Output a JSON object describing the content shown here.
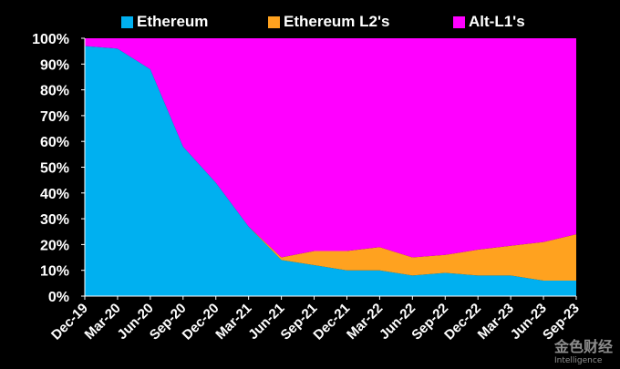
{
  "chart_data": {
    "type": "area",
    "stacked": true,
    "normalized_percent": true,
    "x": [
      "Dec-19",
      "Mar-20",
      "Jun-20",
      "Sep-20",
      "Dec-20",
      "Mar-21",
      "Jun-21",
      "Sep-21",
      "Dec-21",
      "Mar-22",
      "Jun-22",
      "Sep-22",
      "Dec-22",
      "Mar-23",
      "Jun-23",
      "Sep-23"
    ],
    "series": [
      {
        "name": "Ethereum",
        "color": "#00b0f0",
        "values": [
          97,
          96,
          88,
          58,
          44,
          27,
          14,
          12,
          10,
          10,
          8,
          9,
          8,
          8,
          6,
          6
        ]
      },
      {
        "name": "Ethereum L2's",
        "color": "#ffa21f",
        "values": [
          0,
          0,
          0,
          0,
          0,
          0,
          1,
          5.5,
          7.5,
          9,
          7,
          7,
          10,
          11.5,
          15,
          18
        ]
      },
      {
        "name": "Alt-L1's",
        "color": "#ff00ff",
        "values": [
          3,
          4,
          12,
          42,
          56,
          73,
          85,
          82.5,
          82.5,
          81,
          85,
          84,
          82,
          80.5,
          79,
          76
        ]
      }
    ],
    "y_ticks": [
      "0%",
      "10%",
      "20%",
      "30%",
      "40%",
      "50%",
      "60%",
      "70%",
      "80%",
      "90%",
      "100%"
    ],
    "ylim": [
      0,
      100
    ],
    "grid": false,
    "legend_position": "top",
    "title": "",
    "xlabel": "",
    "ylabel": ""
  },
  "watermark": {
    "text": "金色财经",
    "subtext": "Intelligence"
  }
}
